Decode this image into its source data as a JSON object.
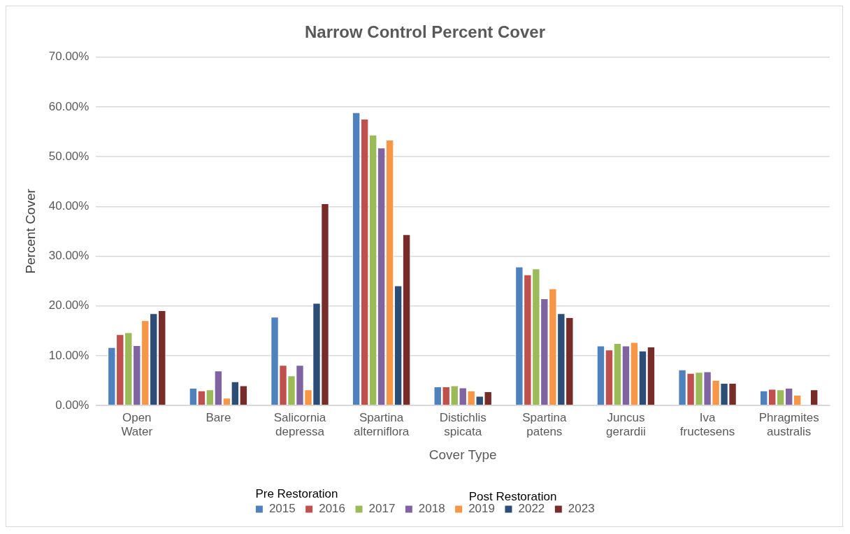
{
  "chart_data": {
    "type": "bar",
    "title": "Narrow Control Percent Cover",
    "xlabel": "Cover Type",
    "ylabel": "Percent Cover",
    "categories": [
      "Open Water",
      "Bare",
      "Salicornia depressa",
      "Spartina alterniflora",
      "Distichlis spicata",
      "Spartina patens",
      "Juncus gerardii",
      "Iva fructesens",
      "Phragmites australis"
    ],
    "series": [
      {
        "name": "2015",
        "color": "#4f81bd",
        "values": [
          11.7,
          3.5,
          17.8,
          58.9,
          3.8,
          27.9,
          12.0,
          7.2,
          3.0
        ]
      },
      {
        "name": "2016",
        "color": "#c0504d",
        "values": [
          14.3,
          3.0,
          8.1,
          57.6,
          3.8,
          26.3,
          11.2,
          6.5,
          3.3
        ]
      },
      {
        "name": "2017",
        "color": "#9bbb59",
        "values": [
          14.7,
          3.2,
          6.0,
          54.4,
          4.0,
          27.5,
          12.5,
          6.7,
          3.2
        ]
      },
      {
        "name": "2018",
        "color": "#8064a2",
        "values": [
          12.1,
          7.0,
          8.1,
          51.8,
          3.6,
          21.5,
          12.0,
          6.8,
          3.5
        ]
      },
      {
        "name": "2019",
        "color": "#f79646",
        "values": [
          17.1,
          1.5,
          3.2,
          53.4,
          3.0,
          23.5,
          12.7,
          5.1,
          2.1
        ]
      },
      {
        "name": "2022",
        "color": "#2c4d75",
        "values": [
          18.5,
          4.8,
          20.6,
          24.1,
          1.9,
          18.5,
          11.0,
          4.5,
          null
        ]
      },
      {
        "name": "2023",
        "color": "#772c2a",
        "values": [
          19.1,
          4.0,
          40.6,
          34.4,
          2.8,
          17.7,
          11.8,
          4.5,
          3.2
        ]
      }
    ],
    "ylim": [
      0,
      70
    ],
    "yticks": [
      {
        "value": 0,
        "label": "0.00%"
      },
      {
        "value": 10,
        "label": "10.00%"
      },
      {
        "value": 20,
        "label": "20.00%"
      },
      {
        "value": 30,
        "label": "30.00%"
      },
      {
        "value": 40,
        "label": "40.00%"
      },
      {
        "value": 50,
        "label": "50.00%"
      },
      {
        "value": 60,
        "label": "60.00%"
      },
      {
        "value": 70,
        "label": "70.00%"
      }
    ],
    "grid": "y",
    "legend": "bottom",
    "annotations": [
      "Pre Restoration",
      "Post Restoration"
    ]
  }
}
